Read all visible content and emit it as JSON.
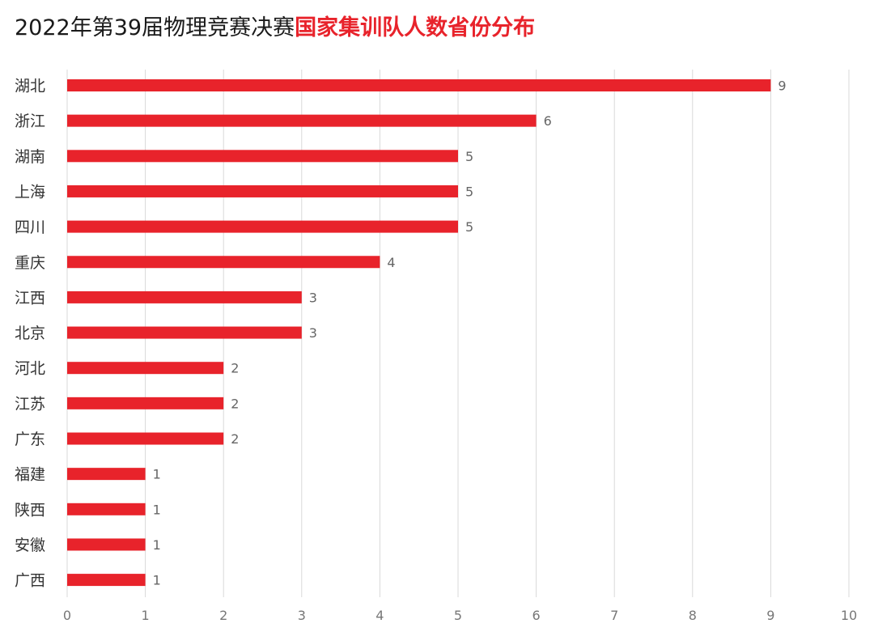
{
  "title": {
    "prefix": "2022年第39届物理竞赛决赛",
    "highlight": "国家集训队人数省份分布"
  },
  "colors": {
    "bar": "#e8232b",
    "highlight": "#e8232b",
    "grid": "#d9d9d9"
  },
  "chart_data": {
    "type": "bar",
    "orientation": "horizontal",
    "categories": [
      "湖北",
      "浙江",
      "湖南",
      "上海",
      "四川",
      "重庆",
      "江西",
      "北京",
      "河北",
      "江苏",
      "广东",
      "福建",
      "陕西",
      "安徽",
      "广西"
    ],
    "values": [
      9,
      6,
      5,
      5,
      5,
      4,
      3,
      3,
      2,
      2,
      2,
      1,
      1,
      1,
      1
    ],
    "xlim": [
      0,
      10
    ],
    "xticks": [
      "0",
      "1",
      "2",
      "3",
      "4",
      "5",
      "6",
      "7",
      "8",
      "9",
      "10"
    ],
    "grid": true,
    "data_labels": true
  }
}
